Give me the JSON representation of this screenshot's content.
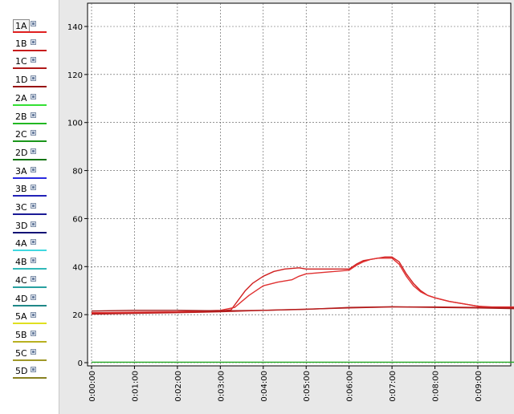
{
  "legend": [
    {
      "label": "1A",
      "color": "#e02020",
      "active": true
    },
    {
      "label": "1B",
      "color": "#c81c1c"
    },
    {
      "label": "1C",
      "color": "#b01818"
    },
    {
      "label": "1D",
      "color": "#981414"
    },
    {
      "label": "2A",
      "color": "#33e033"
    },
    {
      "label": "2B",
      "color": "#22b822"
    },
    {
      "label": "2C",
      "color": "#1a961a"
    },
    {
      "label": "2D",
      "color": "#137513"
    },
    {
      "label": "3A",
      "color": "#2a2ae0"
    },
    {
      "label": "3B",
      "color": "#2222b8"
    },
    {
      "label": "3C",
      "color": "#1a1a96"
    },
    {
      "label": "3D",
      "color": "#131375"
    },
    {
      "label": "4A",
      "color": "#40d8e0"
    },
    {
      "label": "4B",
      "color": "#30b8b8"
    },
    {
      "label": "4C",
      "color": "#28a0a0"
    },
    {
      "label": "4D",
      "color": "#208888"
    },
    {
      "label": "5A",
      "color": "#e0e020"
    },
    {
      "label": "5B",
      "color": "#b8b020"
    },
    {
      "label": "5C",
      "color": "#a09828"
    },
    {
      "label": "5D",
      "color": "#888020"
    }
  ],
  "chart_data": {
    "type": "line",
    "ylim": [
      0,
      140
    ],
    "yticks": [
      0,
      20,
      40,
      60,
      80,
      100,
      120,
      140
    ],
    "xlim": [
      0,
      595
    ],
    "xticks": [
      {
        "t": 0,
        "label": "0:00:00"
      },
      {
        "t": 60,
        "label": "0:01:00"
      },
      {
        "t": 120,
        "label": "0:02:00"
      },
      {
        "t": 180,
        "label": "0:03:00"
      },
      {
        "t": 240,
        "label": "0:04:00"
      },
      {
        "t": 300,
        "label": "0:05:00"
      },
      {
        "t": 360,
        "label": "0:06:00"
      },
      {
        "t": 420,
        "label": "0:07:00"
      },
      {
        "t": 480,
        "label": "0:08:00"
      },
      {
        "t": 540,
        "label": "0:09:00"
      }
    ],
    "grid": true,
    "series": [
      {
        "color": "#d02020",
        "x": [
          0,
          60,
          120,
          180,
          195,
          205,
          215,
          225,
          240,
          255,
          270,
          290,
          300,
          320,
          340,
          360,
          370,
          380,
          390,
          400,
          410,
          420,
          430,
          440,
          450,
          460,
          470,
          480,
          500,
          520,
          540,
          560,
          595
        ],
        "y": [
          20.5,
          20.8,
          21,
          21.5,
          22,
          26,
          30,
          33,
          36,
          38,
          39,
          39.5,
          39,
          39,
          39,
          39,
          41,
          42.5,
          43,
          43.5,
          44,
          44,
          42,
          37,
          33,
          30,
          28,
          27,
          25.5,
          24.5,
          23.5,
          23,
          23
        ]
      },
      {
        "color": "#e03030",
        "x": [
          0,
          60,
          120,
          180,
          200,
          220,
          240,
          260,
          280,
          290,
          300,
          320,
          340,
          360,
          370,
          380,
          390,
          400,
          410,
          420,
          430,
          440,
          450,
          460,
          470,
          480,
          500,
          520,
          540,
          560,
          595
        ],
        "y": [
          20.8,
          21,
          21.2,
          21.8,
          23,
          28,
          32,
          33.5,
          34.5,
          36,
          37,
          37.5,
          38,
          38.5,
          40.5,
          42,
          43,
          43.5,
          43.5,
          43.5,
          41,
          36,
          32,
          29.5,
          28,
          27,
          25.5,
          24.5,
          23.5,
          23.2,
          23.2
        ]
      },
      {
        "color": "#a01818",
        "x": [
          0,
          60,
          120,
          180,
          240,
          300,
          360,
          420,
          480,
          540,
          595
        ],
        "y": [
          21.5,
          21.8,
          21.8,
          21.6,
          21.8,
          22.2,
          23,
          23.3,
          23,
          22.8,
          22.5
        ]
      },
      {
        "color": "#b81c1c",
        "x": [
          0,
          60,
          120,
          180,
          240,
          300,
          360,
          420,
          480,
          540,
          595
        ],
        "y": [
          20.2,
          20.5,
          20.8,
          21.2,
          21.8,
          22.3,
          22.8,
          23.2,
          23.2,
          23,
          22.8
        ]
      },
      {
        "color": "#22a822",
        "x": [
          0,
          595
        ],
        "y": [
          0.2,
          0.2
        ]
      }
    ]
  }
}
